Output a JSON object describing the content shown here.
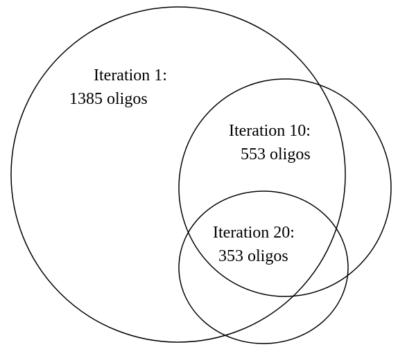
{
  "sets": [
    {
      "label": "Iteration 1:",
      "size_label": "1385 oligos"
    },
    {
      "label": "Iteration 10:",
      "size_label": "553 oligos"
    },
    {
      "label": "Iteration 20:",
      "size_label": "353 oligos"
    }
  ]
}
